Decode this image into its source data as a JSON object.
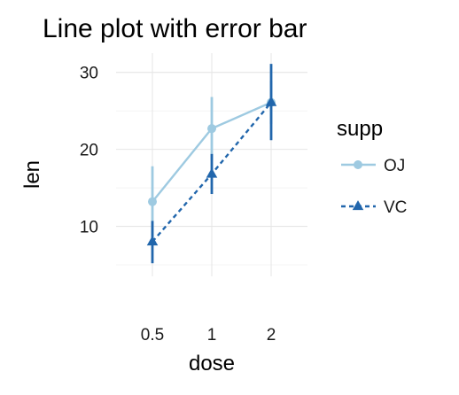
{
  "chart_data": {
    "type": "line",
    "title": "Line plot with error bar",
    "xlabel": "dose",
    "ylabel": "len",
    "categories": [
      "0.5",
      "1",
      "2"
    ],
    "ylim": [
      3.5,
      32.5
    ],
    "yticks": [
      10,
      20,
      30
    ],
    "grid": true,
    "legend": {
      "title": "supp",
      "position": "right"
    },
    "series": [
      {
        "name": "OJ",
        "color": "#9ecae1",
        "marker": "circle",
        "line_style": "solid",
        "values": [
          13.2,
          22.7,
          26.1
        ],
        "error_low": [
          8.6,
          18.6,
          23.3
        ],
        "error_high": [
          17.8,
          26.8,
          28.9
        ]
      },
      {
        "name": "VC",
        "color": "#2166ac",
        "marker": "triangle",
        "line_style": "dashed",
        "values": [
          8.0,
          16.8,
          26.1
        ],
        "error_low": [
          5.2,
          14.2,
          21.2
        ],
        "error_high": [
          10.7,
          19.4,
          31.1
        ]
      }
    ]
  }
}
